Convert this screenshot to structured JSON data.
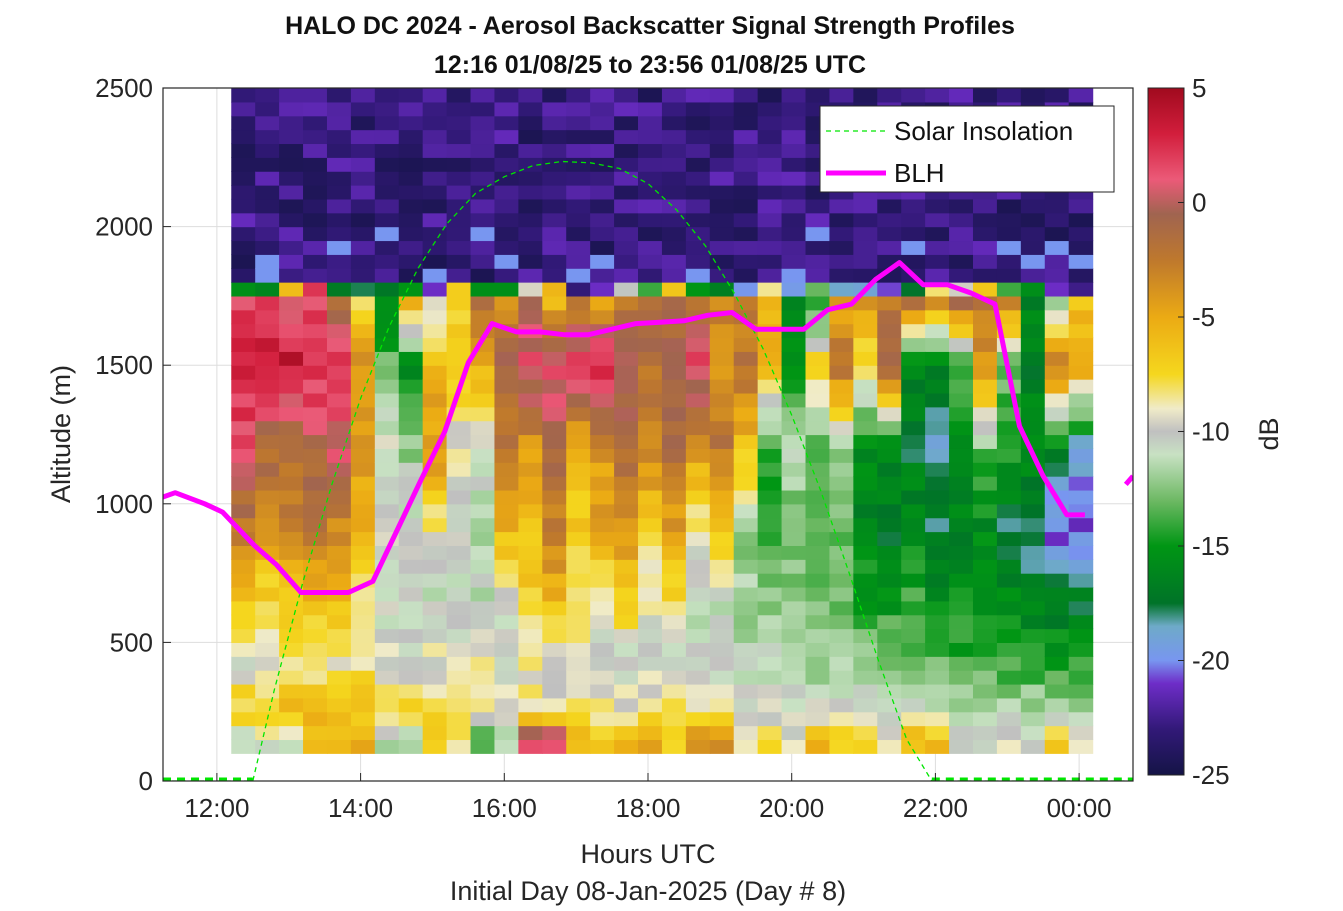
{
  "chart_data": {
    "type": "heatmap",
    "title_line1": "HALO DC 2024 - Aerosol Backscatter Signal Strength Profiles",
    "title_line2": "12:16 01/08/25 to 23:56 01/08/25  UTC",
    "xlabel": "Hours UTC",
    "xlabel2": "Initial Day 08-Jan-2025 (Day # 8)",
    "ylabel": "Altitude (m)",
    "colorbar_label": "dB",
    "xlim": [
      11.25,
      24.75
    ],
    "ylim": [
      0,
      2500
    ],
    "clim": [
      -25,
      5
    ],
    "x_ticks": [
      12,
      14,
      16,
      18,
      20,
      22,
      24
    ],
    "x_tick_labels": [
      "12:00",
      "14:00",
      "16:00",
      "18:00",
      "20:00",
      "22:00",
      "00:00"
    ],
    "y_ticks": [
      0,
      500,
      1000,
      1500,
      2000,
      2500
    ],
    "y_tick_labels": [
      "0",
      "500",
      "1000",
      "1500",
      "2000",
      "2500"
    ],
    "colorbar_ticks": [
      5,
      0,
      -5,
      -10,
      -15,
      -20,
      -25
    ],
    "colorbar_tick_labels": [
      "5",
      "0",
      "-5",
      "-10",
      "-15",
      "-20",
      "-25"
    ],
    "grid": true,
    "legend_position": "top-right",
    "heatmap": {
      "t_start": 12.2,
      "t_step": 0.333,
      "alt_start": 100,
      "alt_step": 50,
      "layers": [
        {
          "ytop": 1775,
          "values": [
            -16.5,
            -16.5,
            -5.8,
            1.5,
            -16,
            -18.5,
            -16.5,
            -16,
            -22,
            -7.5,
            -16.5,
            -16,
            -9,
            -6.5,
            -22.5,
            -20.5,
            -10,
            -15,
            -7.5,
            -16,
            -17,
            -20.5,
            -9,
            -19,
            -14,
            -19.5,
            -20,
            -21,
            -17,
            -8,
            -9,
            -6,
            -14.5,
            -16,
            -22,
            -22
          ]
        },
        {
          "ytop": 1725,
          "values": [
            1.8,
            1.5,
            1,
            1.6,
            -2.5,
            -8,
            -16,
            -6,
            -10,
            -7,
            -2,
            -3,
            -1,
            -6,
            -3,
            -4,
            -2.5,
            -1,
            -2,
            -1.5,
            -3,
            -3,
            -5,
            -16,
            -15,
            -5,
            -4,
            -2,
            -1,
            -4.5,
            -1.5,
            -2,
            -3,
            -16.5,
            -12,
            -6
          ]
        },
        {
          "ytop": 1500,
          "values": [
            2.8,
            3.5,
            3.8,
            3,
            2.8,
            -4,
            -13,
            -16,
            -6,
            -7,
            -5,
            -1,
            1.5,
            1.5,
            2,
            3,
            0.5,
            -2,
            -1,
            2,
            -3.5,
            -2,
            -6,
            -15,
            -7,
            -2,
            -8,
            -1.5,
            -16.5,
            -17,
            -14,
            -4,
            -13,
            -16.5,
            -2,
            -5
          ]
        },
        {
          "ytop": 1200,
          "values": [
            1,
            -1,
            -1.5,
            -1,
            0.5,
            -4,
            -10,
            -12,
            -4,
            -9.5,
            -11,
            -2,
            -4,
            -1.5,
            -6,
            -4,
            -1,
            -3,
            -1.5,
            -4,
            -2,
            -6,
            -14,
            -11,
            -14,
            -12,
            -16,
            -16.5,
            -17,
            -18.5,
            -15.5,
            -13,
            -14,
            -16,
            -17,
            -19
          ]
        },
        {
          "ytop": 900,
          "values": [
            -2.5,
            -4.5,
            -3,
            -2,
            -3.5,
            -6,
            -10,
            -10,
            -8.5,
            -10,
            -11,
            -5.5,
            -6,
            -3,
            -6.5,
            -5,
            -4,
            -7,
            -4.5,
            -9,
            -6.5,
            -12,
            -14.5,
            -13,
            -14,
            -13.5,
            -16,
            -17,
            -16,
            -17.5,
            -16.5,
            -16,
            -17.5,
            -18,
            -20.5,
            -21
          ]
        },
        {
          "ytop": 650,
          "values": [
            -7,
            -7.5,
            -6.5,
            -6,
            -6.5,
            -9,
            -10.5,
            -10.5,
            -11,
            -11,
            -11.5,
            -11,
            -7.5,
            -6,
            -8,
            -9,
            -7,
            -9.5,
            -8,
            -11,
            -11,
            -12,
            -12.5,
            -12.5,
            -13,
            -13,
            -14.5,
            -15,
            -14,
            -16,
            -15.5,
            -16,
            -16,
            -16.5,
            -17,
            -17
          ]
        },
        {
          "ytop": 450,
          "values": [
            -10,
            -10.5,
            -9,
            -8.5,
            -9,
            -8,
            -9.5,
            -10,
            -9.5,
            -10,
            -9.5,
            -10,
            -9,
            -9.5,
            -9.5,
            -10,
            -10.5,
            -10,
            -10.5,
            -10.5,
            -11,
            -11,
            -11.5,
            -11.5,
            -12,
            -12,
            -12.5,
            -12.5,
            -13,
            -13.5,
            -14,
            -14,
            -14.5,
            -14.5,
            -15,
            -15
          ]
        },
        {
          "ytop": 250,
          "values": [
            -7,
            -6.5,
            -6,
            -6,
            -6.5,
            -7,
            -7.5,
            -7.5,
            -8,
            -8,
            -8.5,
            -9.5,
            -8.5,
            -9,
            -8.5,
            -8.5,
            -9,
            -9,
            -8.5,
            -9,
            -9.5,
            -9.5,
            -10,
            -10,
            -10,
            -10.5,
            -10.5,
            -10.5,
            -10.5,
            -10.5,
            -11,
            -11,
            -11,
            -11.5,
            -12,
            -12
          ]
        },
        {
          "ytop": 150,
          "values": [
            -11,
            -10.5,
            -10,
            -6,
            -5,
            -5,
            -11,
            -11.5,
            -6.5,
            -8,
            -14,
            -11,
            2,
            2,
            -6,
            -7,
            -5,
            -4.5,
            -7,
            -4,
            -4,
            -10,
            -6.5,
            -9.5,
            -6,
            -7,
            -6.5,
            -9,
            -6,
            -6.5,
            -10.5,
            -10,
            -10,
            -9.5,
            -7.5,
            -10
          ]
        }
      ]
    },
    "series": [
      {
        "name": "Solar Insolation",
        "x": [
          11.25,
          12.5,
          12.8,
          13.2,
          13.6,
          14.0,
          14.4,
          14.8,
          15.2,
          15.6,
          16.0,
          16.4,
          16.8,
          17.2,
          17.6,
          18.0,
          18.4,
          18.8,
          19.2,
          19.6,
          20.0,
          20.4,
          20.8,
          21.2,
          21.6,
          21.95,
          24.75
        ],
        "y": [
          0,
          0,
          330,
          720,
          1070,
          1380,
          1640,
          1850,
          2010,
          2120,
          2180,
          2220,
          2235,
          2230,
          2210,
          2155,
          2060,
          1930,
          1760,
          1560,
          1320,
          1050,
          750,
          440,
          150,
          0,
          0
        ]
      },
      {
        "name": "BLH",
        "segments": [
          {
            "x": [
              11.2,
              11.42,
              11.83,
              12.08,
              12.52,
              12.83,
              13.17,
              13.5,
              13.83,
              14.17,
              14.5,
              14.83,
              15.17,
              15.5,
              15.83,
              16.17,
              16.5,
              16.83,
              17.17,
              17.5,
              17.83,
              18.17,
              18.5,
              18.83,
              19.17,
              19.5,
              19.83,
              20.17,
              20.5,
              20.83,
              21.17,
              21.5,
              21.83,
              22.17,
              22.5,
              22.83,
              23.17,
              23.5,
              23.83,
              24.08
            ],
            "y": [
              1020,
              1040,
              1000,
              970,
              850,
              780,
              680,
              680,
              680,
              720,
              900,
              1080,
              1260,
              1510,
              1650,
              1620,
              1620,
              1610,
              1610,
              1630,
              1650,
              1655,
              1660,
              1680,
              1690,
              1630,
              1630,
              1630,
              1700,
              1720,
              1810,
              1870,
              1790,
              1790,
              1760,
              1720,
              1280,
              1100,
              960,
              960
            ]
          },
          {
            "x": [
              24.65,
              24.75
            ],
            "y": [
              1070,
              1100
            ]
          }
        ]
      }
    ]
  },
  "colors": {
    "solar": "#00e600",
    "blh": "#ff00ff",
    "grid": "#dddddd",
    "axis": "#262626"
  }
}
